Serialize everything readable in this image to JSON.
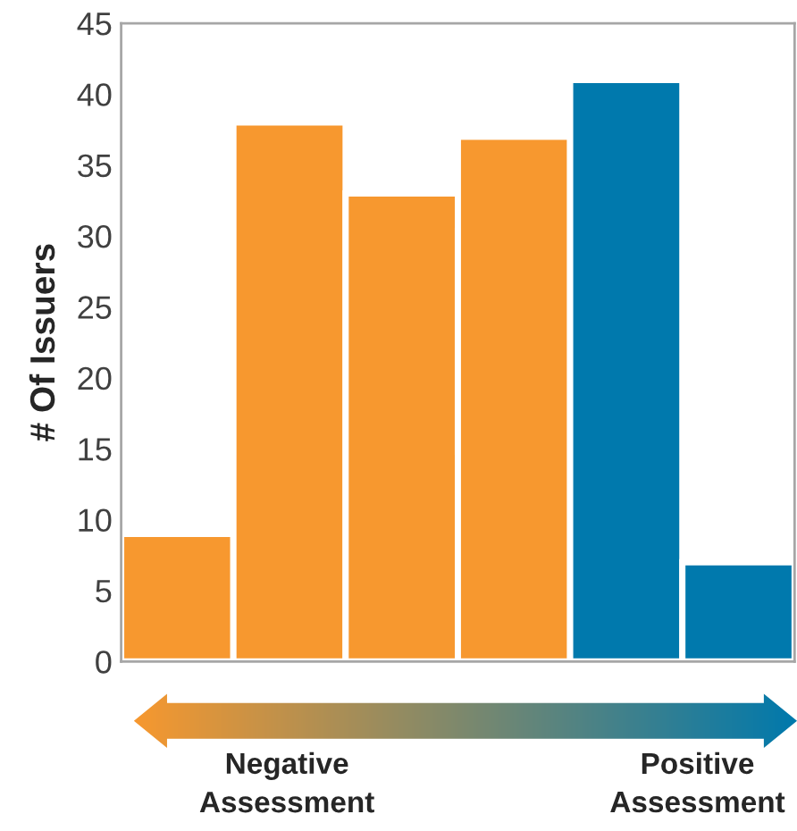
{
  "chart_data": {
    "type": "bar",
    "categories": [
      null,
      null,
      null,
      null,
      null,
      null
    ],
    "values": [
      9,
      38,
      33,
      37,
      41,
      7
    ],
    "colors": [
      "#f7982f",
      "#f7982f",
      "#f7982f",
      "#f7982f",
      "#0079ad",
      "#0079ad"
    ],
    "ylabel": "# Of Issuers",
    "ylim": [
      0,
      45
    ],
    "yticks": [
      0,
      5,
      10,
      15,
      20,
      25,
      30,
      35,
      40,
      45
    ],
    "grid": false,
    "legend": false,
    "annotations": [
      "Negative\nAssessment",
      "Positive\nAssessment"
    ]
  }
}
